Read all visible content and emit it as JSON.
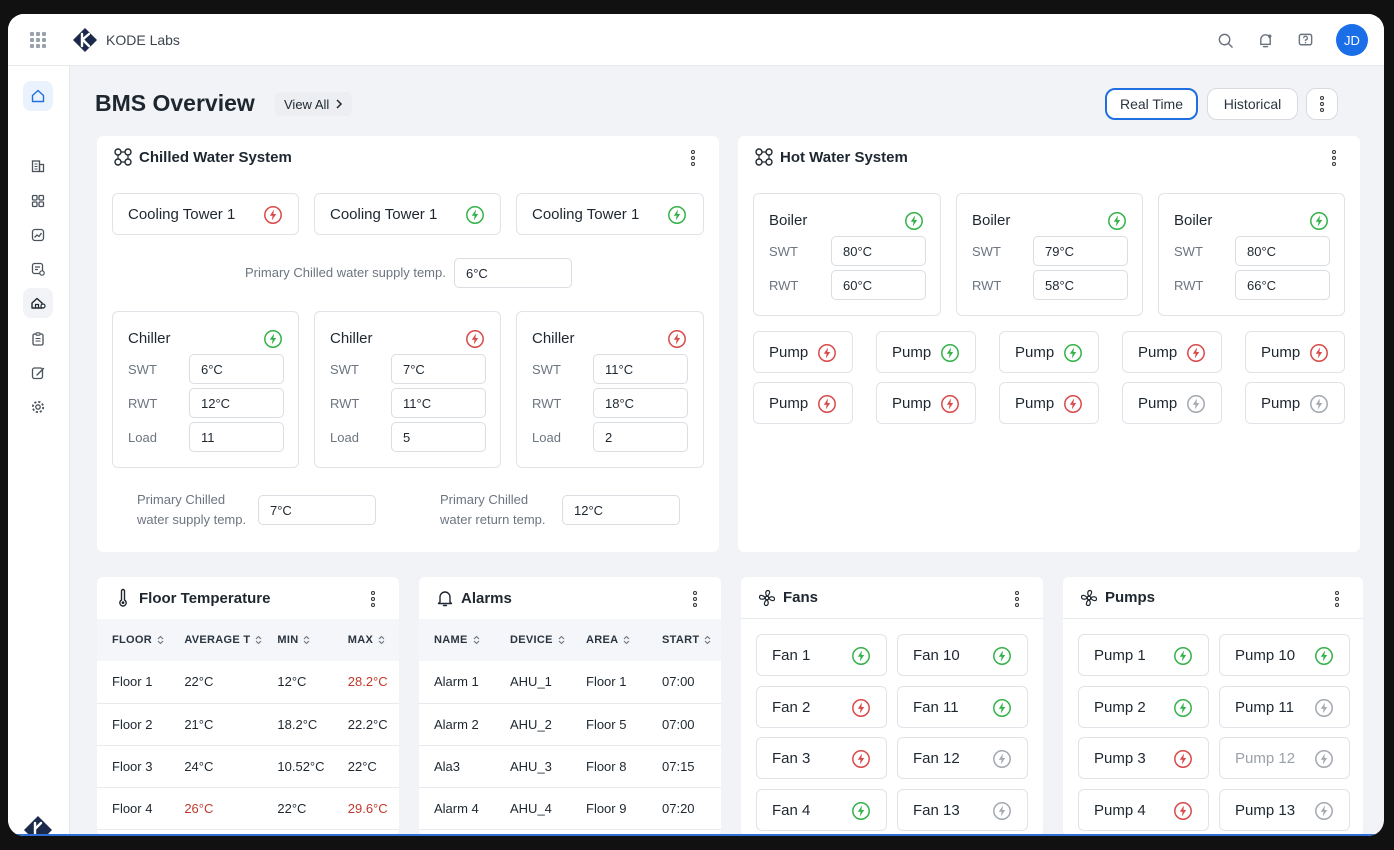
{
  "app": {
    "brand": "KODE Labs",
    "user_initials": "JD"
  },
  "page": {
    "title": "BMS Overview",
    "view_all": "View All",
    "real_time": "Real Time",
    "historical": "Historical"
  },
  "colors": {
    "ok": "#34b24a",
    "fault": "#d94a4a",
    "off": "#a3a9b1",
    "accent": "#1a6fe8"
  },
  "chilled": {
    "title": "Chilled Water System",
    "towers": [
      {
        "label": "Cooling Tower 1",
        "status": "fault"
      },
      {
        "label": "Cooling Tower 1",
        "status": "ok"
      },
      {
        "label": "Cooling Tower 1",
        "status": "ok"
      }
    ],
    "supply_label": "Primary Chilled water supply temp.",
    "supply_value": "6°C",
    "chillers": [
      {
        "label": "Chiller",
        "status": "ok",
        "swt": "6°C",
        "rwt": "12°C",
        "load": "11"
      },
      {
        "label": "Chiller",
        "status": "fault",
        "swt": "7°C",
        "rwt": "11°C",
        "load": "5"
      },
      {
        "label": "Chiller",
        "status": "fault",
        "swt": "11°C",
        "rwt": "18°C",
        "load": "2"
      }
    ],
    "keys": {
      "swt": "SWT",
      "rwt": "RWT",
      "load": "Load"
    },
    "bottom_supply": {
      "line1": "Primary Chilled",
      "line2": "water supply temp.",
      "value": "7°C"
    },
    "bottom_return": {
      "line1": "Primary Chilled",
      "line2": "water return temp.",
      "value": "12°C"
    }
  },
  "hot": {
    "title": "Hot Water System",
    "boilers": [
      {
        "label": "Boiler",
        "status": "ok",
        "swt": "80°C",
        "rwt": "60°C"
      },
      {
        "label": "Boiler",
        "status": "ok",
        "swt": "79°C",
        "rwt": "58°C"
      },
      {
        "label": "Boiler",
        "status": "ok",
        "swt": "80°C",
        "rwt": "66°C"
      }
    ],
    "keys": {
      "swt": "SWT",
      "rwt": "RWT"
    },
    "pumps": [
      {
        "label": "Pump",
        "status": "fault"
      },
      {
        "label": "Pump",
        "status": "ok"
      },
      {
        "label": "Pump",
        "status": "ok"
      },
      {
        "label": "Pump",
        "status": "fault"
      },
      {
        "label": "Pump",
        "status": "fault"
      },
      {
        "label": "Pump",
        "status": "fault"
      },
      {
        "label": "Pump",
        "status": "fault"
      },
      {
        "label": "Pump",
        "status": "fault"
      },
      {
        "label": "Pump",
        "status": "off"
      },
      {
        "label": "Pump",
        "status": "off"
      }
    ]
  },
  "floor_temp": {
    "title": "Floor Temperature",
    "columns": [
      "FLOOR",
      "AVERAGE T",
      "MIN",
      "MAX"
    ],
    "rows": [
      {
        "floor": "Floor 1",
        "avg": "22°C",
        "min": "12°C",
        "max": "28.2°C",
        "avg_hot": false,
        "max_hot": true
      },
      {
        "floor": "Floor 2",
        "avg": "21°C",
        "min": "18.2°C",
        "max": "22.2°C",
        "avg_hot": false,
        "max_hot": false
      },
      {
        "floor": "Floor 3",
        "avg": "24°C",
        "min": "10.52°C",
        "max": "22°C",
        "avg_hot": false,
        "max_hot": false
      },
      {
        "floor": "Floor 4",
        "avg": "26°C",
        "min": "22°C",
        "max": "29.6°C",
        "avg_hot": true,
        "max_hot": true
      }
    ]
  },
  "alarms": {
    "title": "Alarms",
    "columns": [
      "NAME",
      "DEVICE",
      "AREA",
      "START"
    ],
    "rows": [
      {
        "name": "Alarm 1",
        "device": "AHU_1",
        "area": "Floor 1",
        "start": "07:00"
      },
      {
        "name": "Alarm 2",
        "device": "AHU_2",
        "area": "Floor 5",
        "start": "07:00"
      },
      {
        "name": "Ala3",
        "device": "AHU_3",
        "area": "Floor 8",
        "start": "07:15"
      },
      {
        "name": "Alarm 4",
        "device": "AHU_4",
        "area": "Floor 9",
        "start": "07:20"
      }
    ]
  },
  "fans": {
    "title": "Fans",
    "items": [
      {
        "label": "Fan 1",
        "status": "ok"
      },
      {
        "label": "Fan 10",
        "status": "ok"
      },
      {
        "label": "Fan 2",
        "status": "fault"
      },
      {
        "label": "Fan 11",
        "status": "ok"
      },
      {
        "label": "Fan 3",
        "status": "fault"
      },
      {
        "label": "Fan 12",
        "status": "off"
      },
      {
        "label": "Fan 4",
        "status": "ok"
      },
      {
        "label": "Fan 13",
        "status": "off"
      }
    ]
  },
  "pumps": {
    "title": "Pumps",
    "items": [
      {
        "label": "Pump 1",
        "status": "ok"
      },
      {
        "label": "Pump 10",
        "status": "ok"
      },
      {
        "label": "Pump 2",
        "status": "ok"
      },
      {
        "label": "Pump 11",
        "status": "off"
      },
      {
        "label": "Pump 3",
        "status": "fault"
      },
      {
        "label": "Pump 12",
        "status": "off",
        "dim": true
      },
      {
        "label": "Pump 4",
        "status": "fault"
      },
      {
        "label": "Pump 13",
        "status": "off"
      }
    ]
  },
  "icons": {
    "sidebar": [
      "home-icon",
      "building-icon",
      "apps-icon",
      "analytics-icon",
      "checklist-icon",
      "bms-icon",
      "reports-icon",
      "edit-icon",
      "settings-icon"
    ],
    "status": "lightning-bolt-icon"
  }
}
